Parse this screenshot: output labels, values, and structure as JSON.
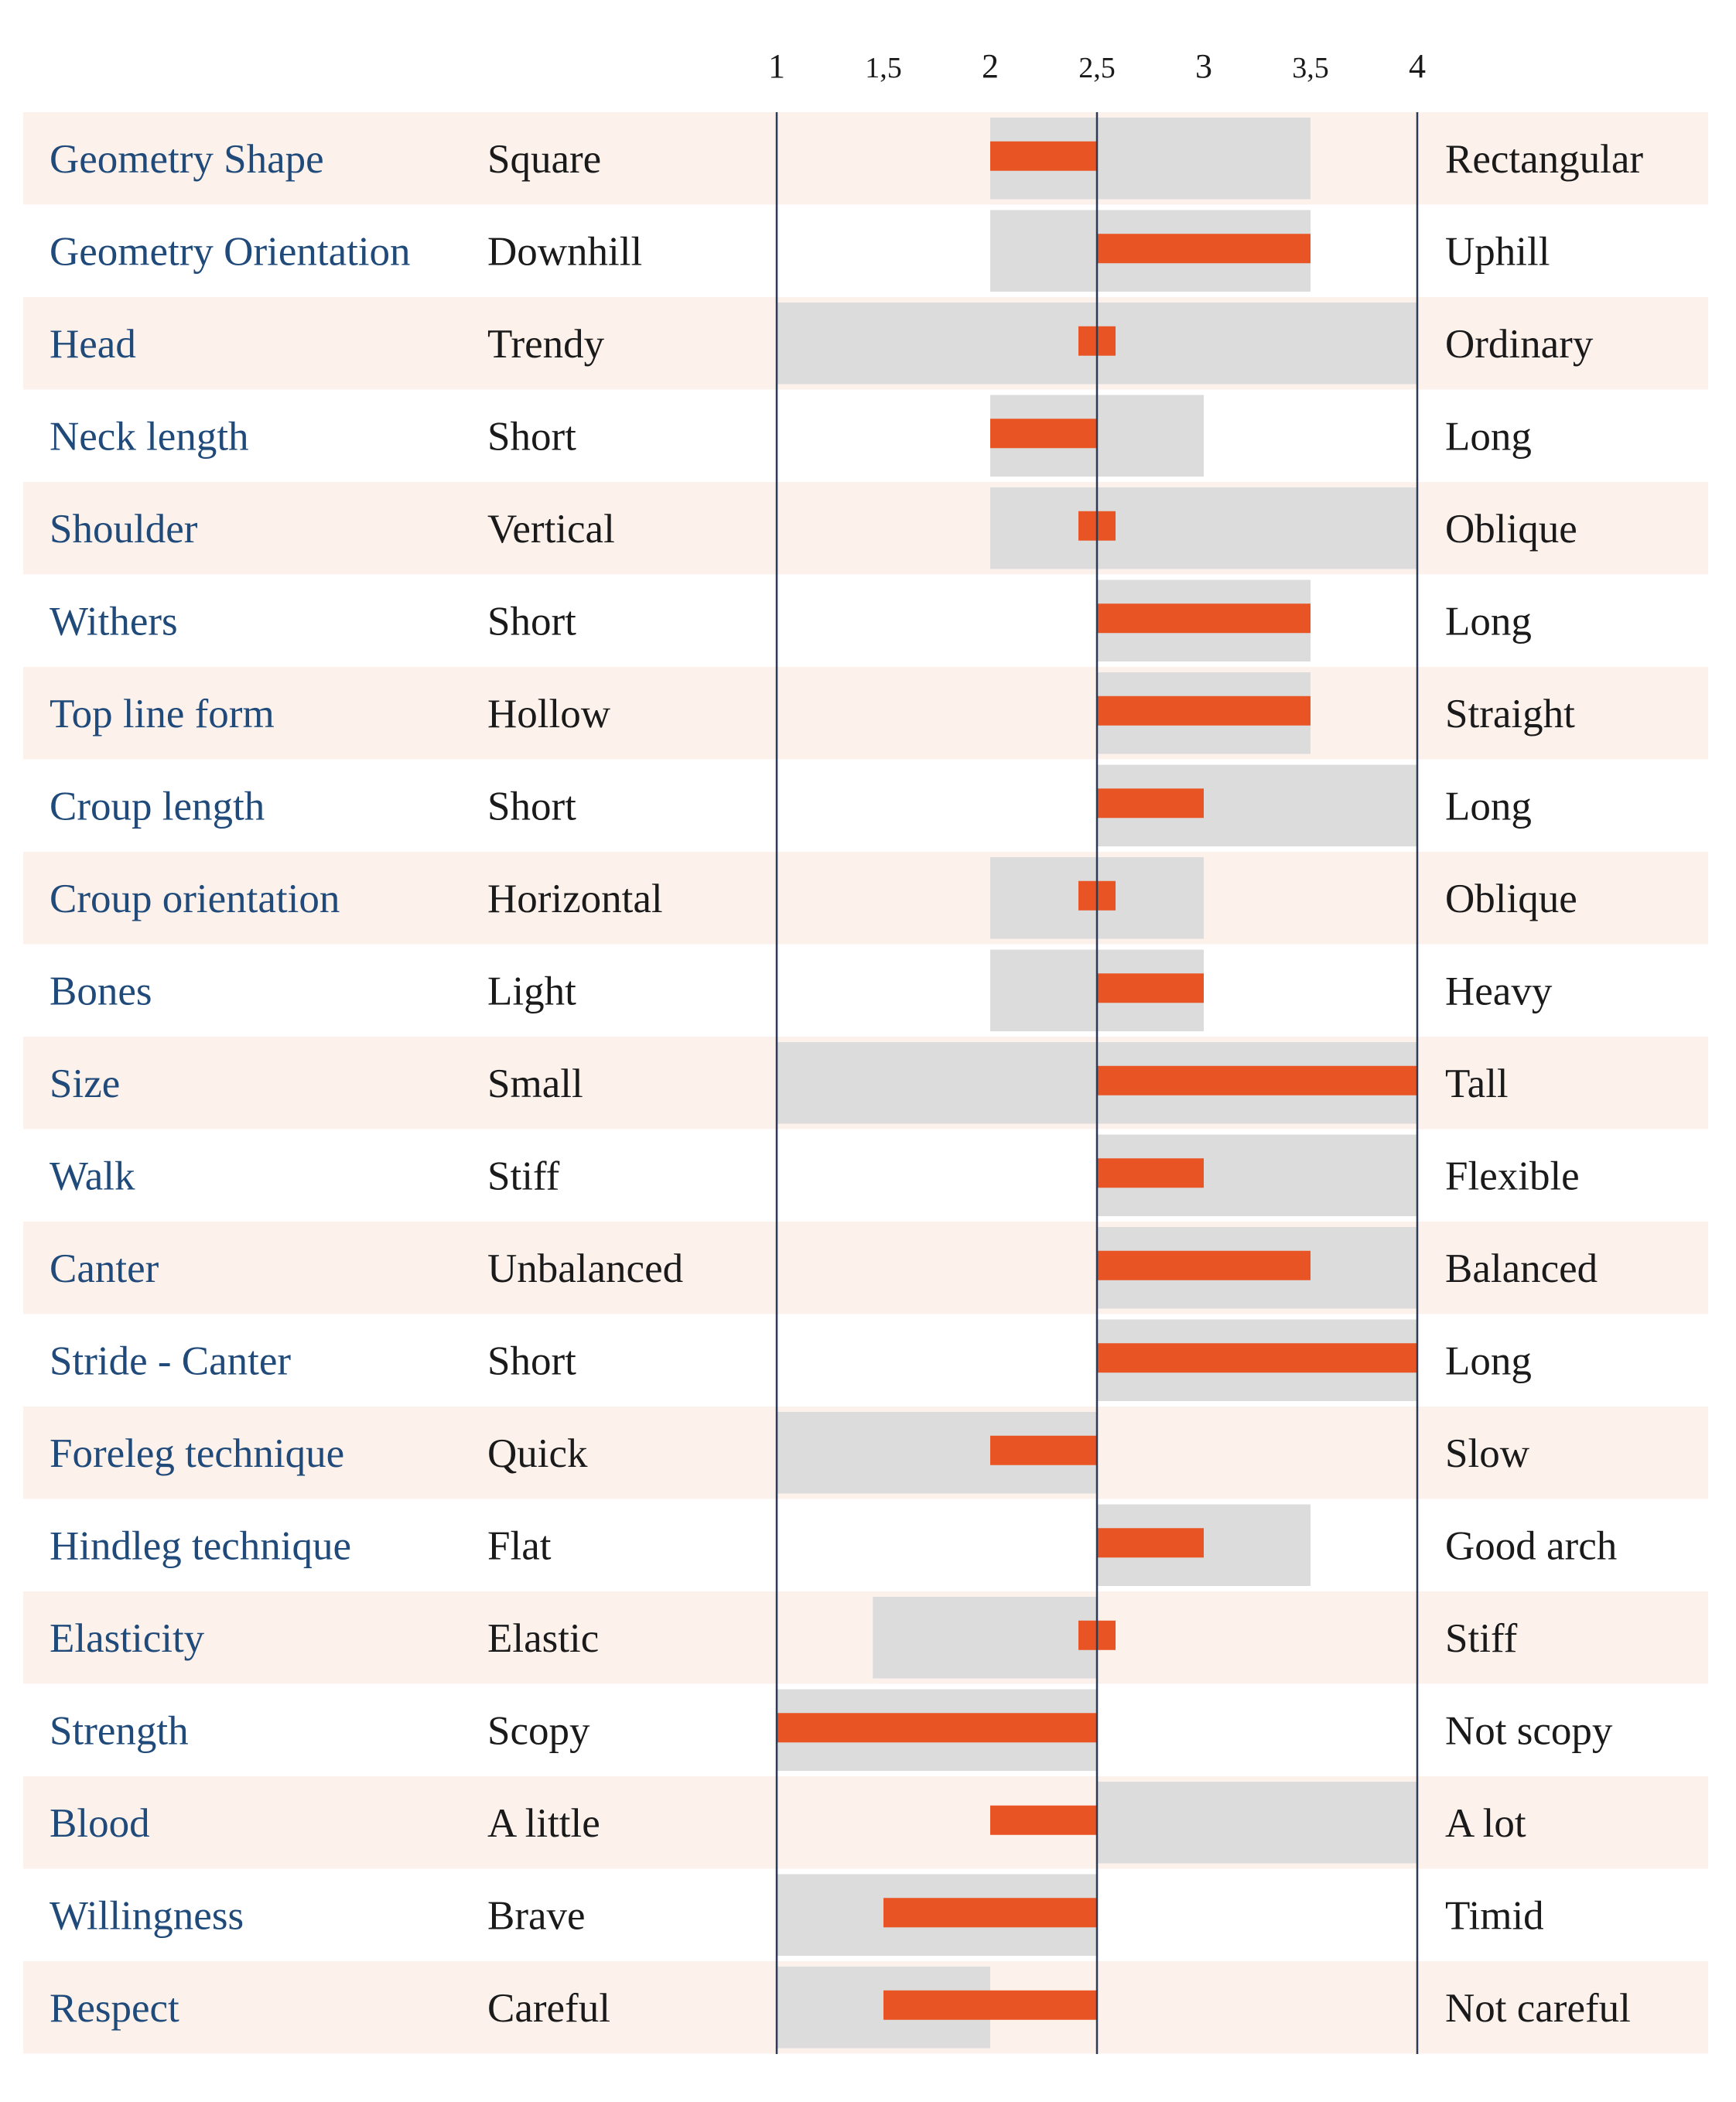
{
  "chart_data": {
    "type": "bar",
    "xlim": [
      1,
      4
    ],
    "ticks": [
      "1",
      "1,5",
      "2",
      "2,5",
      "3",
      "3,5",
      "4"
    ],
    "tick_values": [
      1,
      1.5,
      2,
      2.5,
      3,
      3.5,
      4
    ],
    "center": 2.5,
    "colors": {
      "trait": "#1f4a7a",
      "bar": "#e85423",
      "range": "#dcdcdc",
      "row_alt": "#fdf1ec",
      "axis": "#2b3a55"
    },
    "rows": [
      {
        "trait": "Geometry Shape",
        "low": "Square",
        "high": "Rectangular",
        "range": [
          2,
          3.5
        ],
        "value": 2
      },
      {
        "trait": "Geometry Orientation",
        "low": "Downhill",
        "high": "Uphill",
        "range": [
          2,
          3.5
        ],
        "value": 3.5
      },
      {
        "trait": "Head",
        "low": "Trendy",
        "high": "Ordinary",
        "range": [
          1,
          4
        ],
        "value": 2.6
      },
      {
        "trait": "Neck length",
        "low": "Short",
        "high": "Long",
        "range": [
          2,
          3
        ],
        "value": 2
      },
      {
        "trait": "Shoulder",
        "low": "Vertical",
        "high": "Oblique",
        "range": [
          2,
          4
        ],
        "value": 2.6
      },
      {
        "trait": "Withers",
        "low": "Short",
        "high": "Long",
        "range": [
          2.5,
          3.5
        ],
        "value": 3.5
      },
      {
        "trait": "Top line form",
        "low": "Hollow",
        "high": "Straight",
        "range": [
          2.5,
          3.5
        ],
        "value": 3.5
      },
      {
        "trait": "Croup length",
        "low": "Short",
        "high": "Long",
        "range": [
          2.5,
          4
        ],
        "value": 3
      },
      {
        "trait": "Croup orientation",
        "low": "Horizontal",
        "high": "Oblique",
        "range": [
          2,
          3
        ],
        "value": 2.6
      },
      {
        "trait": "Bones",
        "low": "Light",
        "high": "Heavy",
        "range": [
          2,
          3
        ],
        "value": 3
      },
      {
        "trait": "Size",
        "low": "Small",
        "high": "Tall",
        "range": [
          1,
          4
        ],
        "value": 4
      },
      {
        "trait": "Walk",
        "low": "Stiff",
        "high": "Flexible",
        "range": [
          2.5,
          4
        ],
        "value": 3
      },
      {
        "trait": "Canter",
        "low": "Unbalanced",
        "high": "Balanced",
        "range": [
          2.5,
          4
        ],
        "value": 3.5
      },
      {
        "trait": "Stride - Canter",
        "low": "Short",
        "high": "Long",
        "range": [
          2.5,
          4
        ],
        "value": 4
      },
      {
        "trait": "Foreleg technique",
        "low": "Quick",
        "high": "Slow",
        "range": [
          1,
          2.5
        ],
        "value": 2
      },
      {
        "trait": "Hindleg technique",
        "low": "Flat",
        "high": "Good arch",
        "range": [
          2.5,
          3.5
        ],
        "value": 3
      },
      {
        "trait": "Elasticity",
        "low": "Elastic",
        "high": "Stiff",
        "range": [
          1.45,
          2.5
        ],
        "value": 2.6
      },
      {
        "trait": "Strength",
        "low": "Scopy",
        "high": "Not scopy",
        "range": [
          1,
          2.5
        ],
        "value": 1
      },
      {
        "trait": "Blood",
        "low": "A little",
        "high": "A lot",
        "range": [
          2.5,
          4
        ],
        "value": 2
      },
      {
        "trait": "Willingness",
        "low": "Brave",
        "high": "Timid",
        "range": [
          1,
          2.5
        ],
        "value": 1.5
      },
      {
        "trait": "Respect",
        "low": "Careful",
        "high": "Not careful",
        "range": [
          1,
          2
        ],
        "value": 1.5
      }
    ]
  }
}
